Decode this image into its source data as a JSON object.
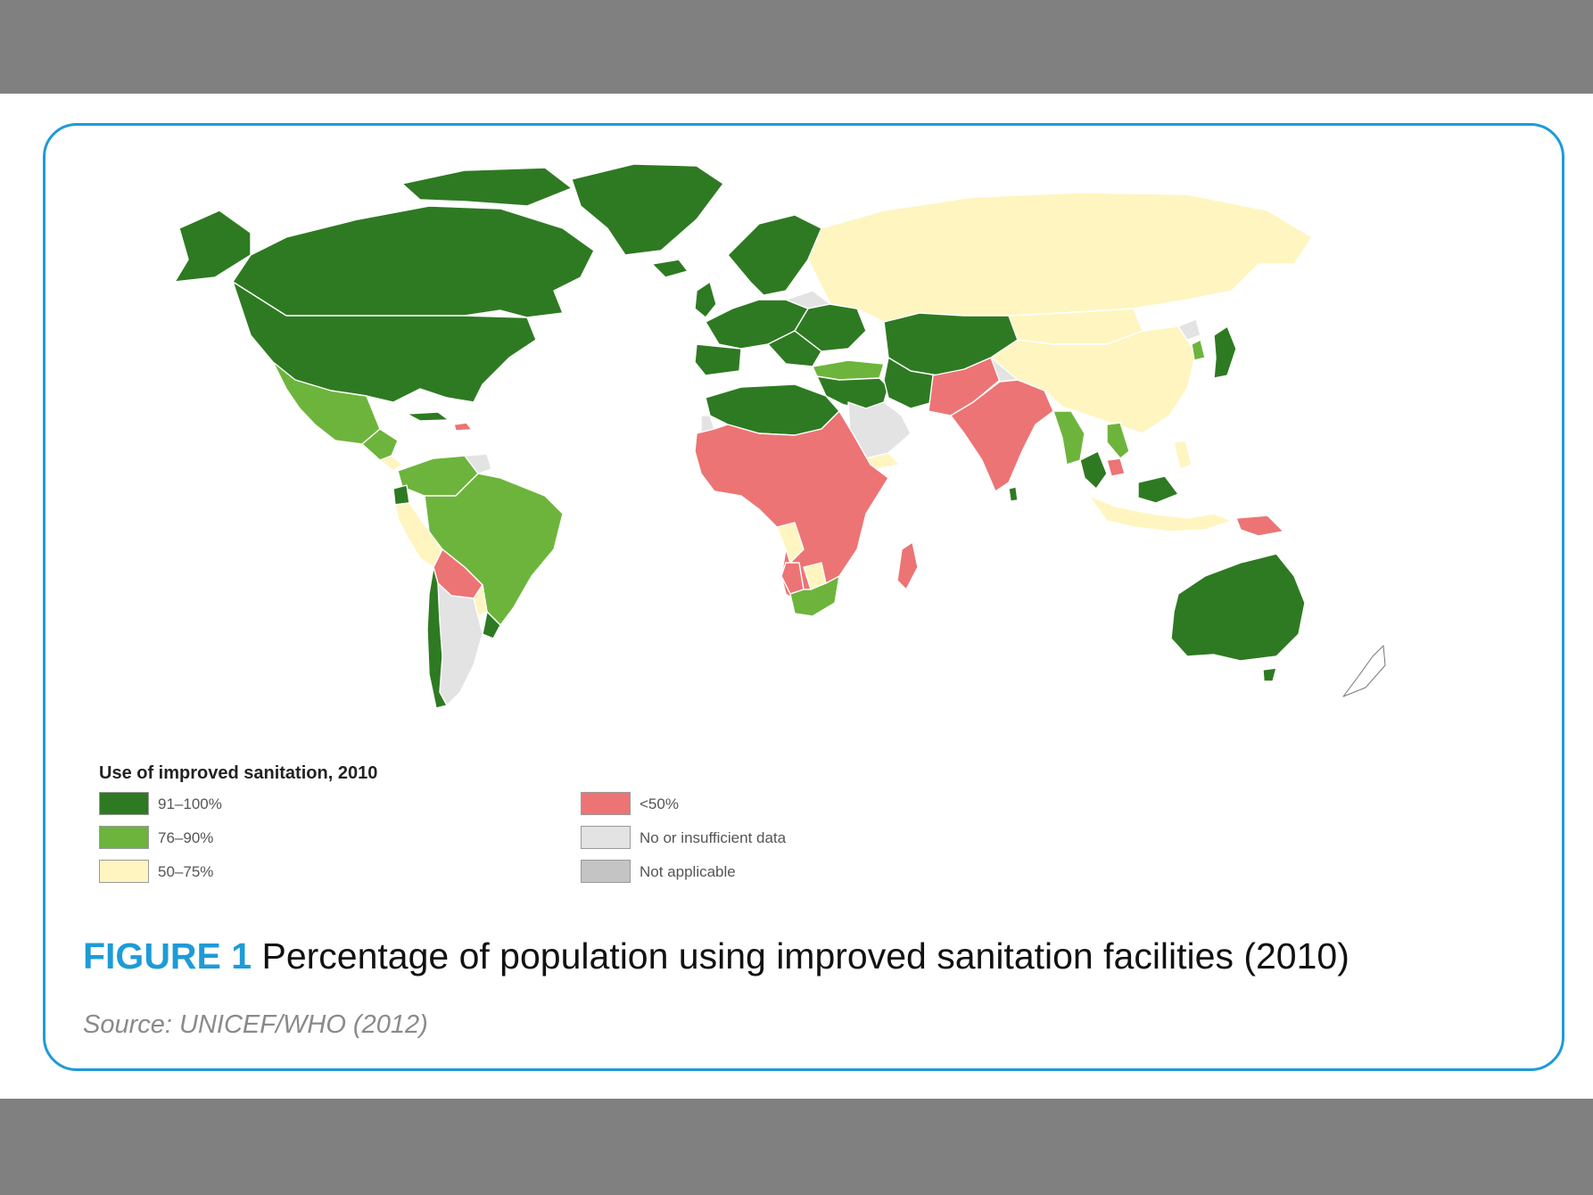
{
  "figure": {
    "label": "FIGURE 1",
    "title": "Percentage of population using improved sanitation facilities (2010)",
    "source": "Source: UNICEF/WHO (2012)"
  },
  "legend": {
    "title": "Use of improved sanitation, 2010",
    "items": [
      {
        "label": "91–100%",
        "color": "#2e7a22"
      },
      {
        "label": "76–90%",
        "color": "#6db43c"
      },
      {
        "label": "50–75%",
        "color": "#fff5c0"
      },
      {
        "label": "<50%",
        "color": "#ec7475"
      },
      {
        "label": "No or insufficient data",
        "color": "#e3e3e3"
      },
      {
        "label": "Not applicable",
        "color": "#c4c4c4"
      }
    ]
  },
  "colors": {
    "frame": "#1e9bd7",
    "background": "#808080",
    "border_lines": "#ffffff"
  }
}
